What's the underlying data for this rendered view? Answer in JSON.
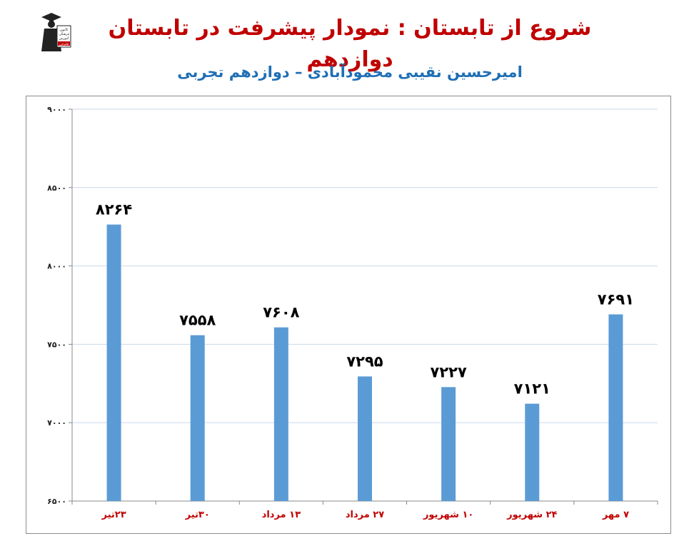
{
  "header": {
    "title": "شروع از تابستان : نمودار پیشرفت در تابستان دوازدهم",
    "subtitle": "امیرحسین نقیبی محمودآبادی – دوازدهم تجربی",
    "logo_icon": "graduate-logo-icon",
    "logo_lines": [
      "كانون",
      "فرهنگی",
      "آموزش",
      "قلم‌چی"
    ]
  },
  "chart_data": {
    "type": "bar",
    "categories": [
      "۲۳تیر",
      "۳۰تیر",
      "۱۳ مرداد",
      "۲۷ مرداد",
      "۱۰ شهریور",
      "۲۴ شهریور",
      "۷ مهر"
    ],
    "values": [
      8264,
      7558,
      7608,
      7295,
      7227,
      7121,
      7691
    ],
    "value_labels": [
      "۸۲۶۴",
      "۷۵۵۸",
      "۷۶۰۸",
      "۷۲۹۵",
      "۷۲۲۷",
      "۷۱۲۱",
      "۷۶۹۱"
    ],
    "title": "",
    "xlabel": "",
    "ylabel": "",
    "ylim": [
      6500,
      9000
    ],
    "yticks": [
      6500,
      7000,
      7500,
      8000,
      8500,
      9000
    ],
    "ytick_labels": [
      "۶۵۰۰",
      "۷۰۰۰",
      "۷۵۰۰",
      "۸۰۰۰",
      "۸۵۰۰",
      "۹۰۰۰"
    ],
    "grid": true,
    "legend": "none",
    "bar_color": "#5b9bd5",
    "category_label_color": "#c00000",
    "value_label_color": "#000000",
    "grid_color": "#c9d9ea"
  }
}
